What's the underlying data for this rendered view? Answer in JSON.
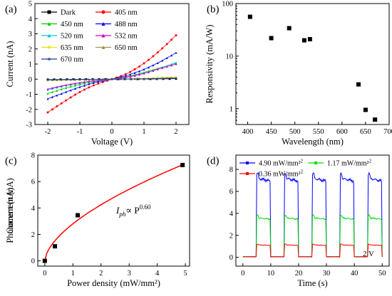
{
  "chart_data": [
    {
      "panel_label": "(a)",
      "type": "line",
      "xlabel": "Voltage (V)",
      "ylabel": "Current (nA)",
      "xlim": [
        -2.4,
        2.4
      ],
      "ylim": [
        -3,
        5
      ],
      "xticks": [
        -2,
        -1,
        0,
        1,
        2
      ],
      "yticks": [
        -3,
        -2,
        -1,
        0,
        1,
        2,
        3,
        4,
        5
      ],
      "legend_placement": "top-left",
      "series": [
        {
          "name": "Dark",
          "color": "#000000",
          "marker": "square",
          "x": [
            -2,
            -1,
            0,
            1,
            2
          ],
          "y": [
            -0.03,
            -0.01,
            0,
            0.01,
            0.03
          ]
        },
        {
          "name": "405 nm",
          "color": "#ff0000",
          "marker": "circle",
          "x": [
            -2,
            -1.5,
            -1,
            -0.5,
            0,
            0.5,
            1,
            1.5,
            2
          ],
          "y": [
            -2.2,
            -1.5,
            -0.85,
            -0.35,
            0,
            0.4,
            1.05,
            1.9,
            2.9
          ]
        },
        {
          "name": "450 nm",
          "color": "#00cc00",
          "marker": "triangle",
          "x": [
            -2,
            -1.5,
            -1,
            -0.5,
            0,
            0.5,
            1,
            1.5,
            2
          ],
          "y": [
            -0.95,
            -0.62,
            -0.35,
            -0.14,
            0,
            0.18,
            0.45,
            0.75,
            1.05
          ]
        },
        {
          "name": "488 nm",
          "color": "#0000ff",
          "marker": "triangle",
          "x": [
            -2,
            -1.5,
            -1,
            -0.5,
            0,
            0.5,
            1,
            1.5,
            2
          ],
          "y": [
            -1.3,
            -0.9,
            -0.52,
            -0.2,
            0,
            0.27,
            0.65,
            1.15,
            1.75
          ]
        },
        {
          "name": "520 nm",
          "color": "#00cccc",
          "marker": "triangle",
          "x": [
            -2,
            -1.5,
            -1,
            -0.5,
            0,
            0.5,
            1,
            1.5,
            2
          ],
          "y": [
            -0.7,
            -0.45,
            -0.25,
            -0.1,
            0,
            0.15,
            0.4,
            0.72,
            1.1
          ]
        },
        {
          "name": "532 nm",
          "color": "#cc00cc",
          "marker": "triangle",
          "x": [
            -2,
            -1.5,
            -1,
            -0.5,
            0,
            0.5,
            1,
            1.5,
            2
          ],
          "y": [
            -0.65,
            -0.42,
            -0.23,
            -0.09,
            0,
            0.14,
            0.38,
            0.7,
            1.0
          ]
        },
        {
          "name": "635 nm",
          "color": "#e6e600",
          "marker": "diamond",
          "x": [
            -2,
            -1,
            0,
            1,
            2
          ],
          "y": [
            -0.08,
            -0.04,
            0,
            0.05,
            0.15
          ]
        },
        {
          "name": "650 nm",
          "color": "#99994d",
          "marker": "triangle",
          "x": [
            -2,
            -1,
            0,
            1,
            2
          ],
          "y": [
            -0.06,
            -0.03,
            0,
            0.03,
            0.1
          ]
        },
        {
          "name": "670 nm",
          "color": "#1f3a99",
          "marker": "star",
          "x": [
            -2,
            -1,
            0,
            1,
            2
          ],
          "y": [
            -0.05,
            -0.02,
            0,
            0.02,
            0.06
          ]
        }
      ]
    },
    {
      "panel_label": "(b)",
      "type": "scatter",
      "xlabel": "Wavelength (nm)",
      "ylabel": "Responsivity (mA/W)",
      "xlim": [
        375,
        700
      ],
      "ylim": [
        0.5,
        100
      ],
      "yscale": "log",
      "xticks": [
        400,
        450,
        500,
        550,
        600,
        650,
        700
      ],
      "yticks": [
        1,
        10,
        100
      ],
      "x": [
        405,
        450,
        488,
        520,
        532,
        635,
        650,
        670
      ],
      "y": [
        56,
        22,
        34,
        20,
        21,
        2.9,
        0.95,
        0.62
      ]
    },
    {
      "panel_label": "(c)",
      "type": "scatter",
      "xlabel": "Power density (mW/mm²)",
      "ylabel": "Photocurrent (nA)",
      "xlim": [
        -0.25,
        5.15
      ],
      "ylim": [
        -0.4,
        8
      ],
      "xticks": [
        0,
        1,
        2,
        3,
        4,
        5
      ],
      "yticks": [
        0,
        2,
        4,
        6,
        8
      ],
      "x": [
        0,
        0.36,
        1.17,
        4.9
      ],
      "y": [
        0,
        1.1,
        3.45,
        7.25
      ],
      "fit": {
        "color": "#ff0000",
        "coefficient": 2.8,
        "exponent": 0.6
      },
      "annotation": {
        "base": "I",
        "sub": "ph",
        "rel": "∝ P",
        "sup": "0.60"
      }
    },
    {
      "panel_label": "(d)",
      "type": "line",
      "xlabel": "Time (s)",
      "ylabel": "Current (nA)",
      "xlim": [
        -2.5,
        52.5
      ],
      "ylim": [
        -0.8,
        9.3
      ],
      "xticks": [
        0,
        10,
        20,
        30,
        40,
        50
      ],
      "yticks": [
        0,
        2,
        4,
        6,
        8
      ],
      "legend_placement": "top",
      "bias_label": "2 V",
      "on_intervals": [
        [
          5,
          10
        ],
        [
          15,
          20
        ],
        [
          25,
          30
        ],
        [
          35,
          40
        ],
        [
          45,
          50
        ]
      ],
      "series": [
        {
          "name": "4.90 mW/mm²",
          "sup": "2",
          "color": "#0000ff",
          "high": 7.0,
          "low": 0.05
        },
        {
          "name": "1.17 mW/mm²",
          "sup": "2",
          "color": "#00dd00",
          "high": 3.5,
          "low": 0.05
        },
        {
          "name": "0.36 mW/mm²",
          "sup": "2",
          "color": "#ff0000",
          "high": 1.1,
          "low": 0.05
        }
      ]
    }
  ]
}
